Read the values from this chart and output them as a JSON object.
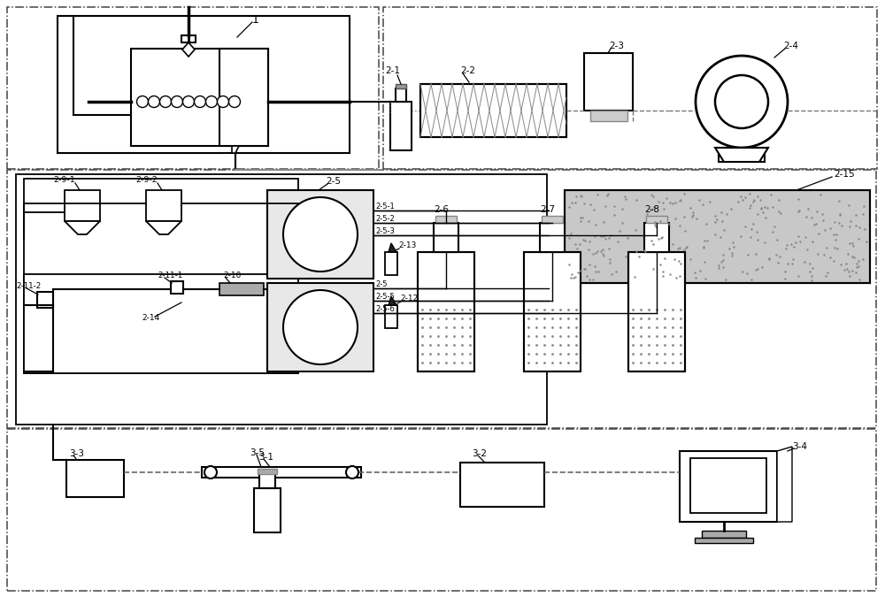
{
  "bg_color": "#ffffff",
  "lc": "#000000",
  "gray_fill": "#b8b8b8",
  "lgray": "#dddddd",
  "pump_fill": "#e8e8e8",
  "figure_width": 10.0,
  "figure_height": 6.75,
  "dpi": 100
}
